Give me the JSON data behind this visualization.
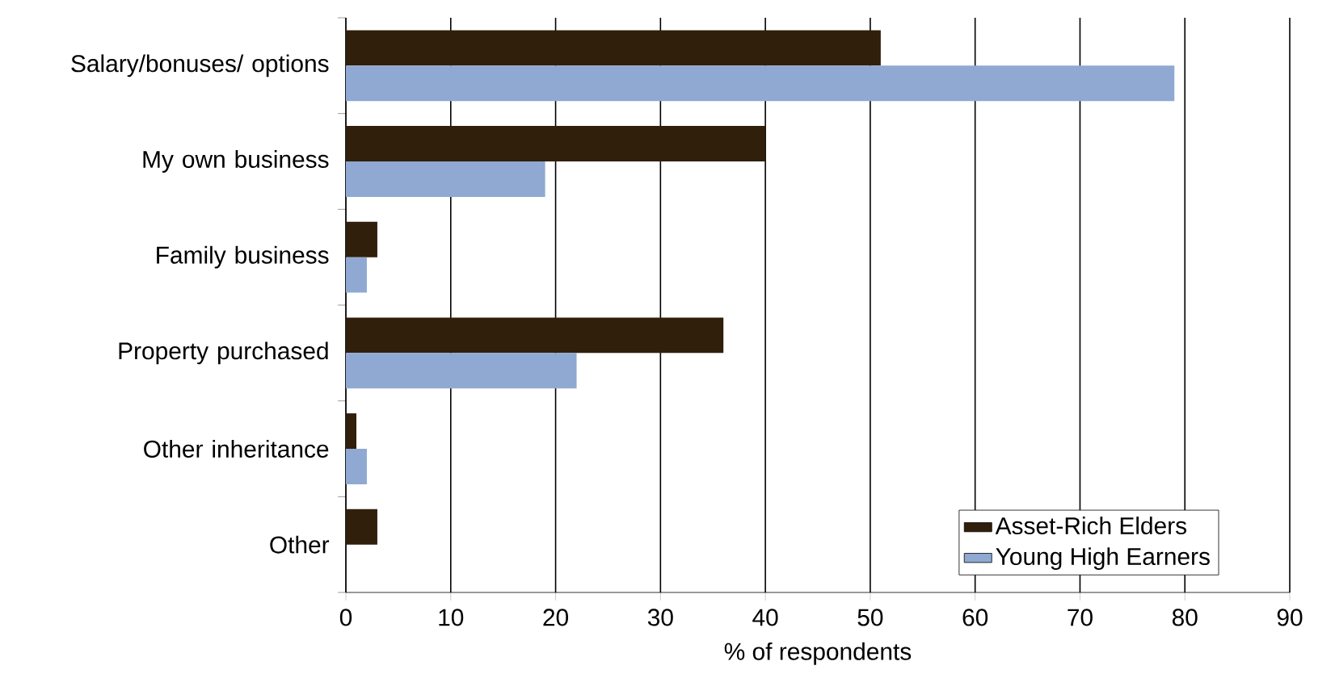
{
  "chart_data": {
    "type": "bar",
    "orientation": "horizontal",
    "xlabel": "% of respondents",
    "categories": [
      "Salary/bonuses/ options",
      "My own business",
      "Family business",
      "Property purchased",
      "Other inheritance",
      "Other"
    ],
    "series": [
      {
        "name": "Asset-Rich Elders",
        "color": "#2f1f0b",
        "values": [
          51,
          40,
          3,
          36,
          1,
          3
        ]
      },
      {
        "name": "Young High Earners",
        "color": "#8fa9d2",
        "values": [
          79,
          19,
          2,
          22,
          2,
          null
        ]
      }
    ],
    "xlim": [
      0,
      90
    ],
    "xticks": [
      0,
      10,
      20,
      30,
      40,
      50,
      60,
      70,
      80,
      90
    ],
    "grid": "x",
    "legend": "bottom right"
  }
}
